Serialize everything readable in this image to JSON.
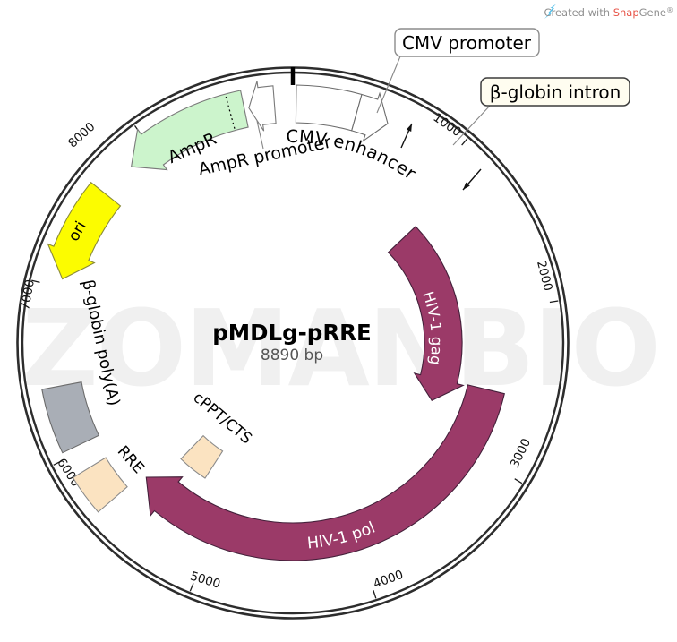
{
  "credit": {
    "prefix": "Created with ",
    "brand_part1": "Snap",
    "brand_part2": "Gene",
    "registered": "®",
    "brand_color": "#e85549",
    "text_color": "#8f8f8f",
    "icon_color": "#55bfe8"
  },
  "watermark": "ZOMANBIO",
  "plasmid": {
    "name": "pMDLg-pRRE",
    "size_label": "8890 bp"
  },
  "ticks": [
    "1000",
    "2000",
    "3000",
    "4000",
    "5000",
    "6000",
    "7000",
    "8000"
  ],
  "features": [
    {
      "id": "cmv-enhancer",
      "label": "CMV enhancer",
      "fill": "#ffffff",
      "text_fill": "#000000"
    },
    {
      "id": "cmv-promoter",
      "label": "CMV promoter",
      "fill": "#ffffff",
      "text_fill": "#000000",
      "label_style": "boxed-callout"
    },
    {
      "id": "beta-globin-intron",
      "label": "β-globin intron",
      "fill": "#fffdf0",
      "text_fill": "#000000",
      "label_style": "boxed-callout"
    },
    {
      "id": "hiv1-gag",
      "label": "HIV-1 gag",
      "fill": "#9b3a68",
      "text_fill": "#ffffff"
    },
    {
      "id": "hiv1-pol",
      "label": "HIV-1 pol",
      "fill": "#9b3a68",
      "text_fill": "#ffffff"
    },
    {
      "id": "cppt-cts",
      "label": "cPPT/CTS",
      "fill": "#fbe3c1",
      "text_fill": "#000000"
    },
    {
      "id": "rre",
      "label": "RRE",
      "fill": "#fbe3c1",
      "text_fill": "#000000"
    },
    {
      "id": "beta-globin-polya",
      "label": "β-globin poly(A)",
      "fill": "#a9aeb6",
      "text_fill": "#000000"
    },
    {
      "id": "ori",
      "label": "ori",
      "fill": "#fcfc00",
      "text_fill": "#000000"
    },
    {
      "id": "ampr",
      "label": "AmpR",
      "fill": "#ccf4cc",
      "text_fill": "#000000"
    },
    {
      "id": "ampr-promoter",
      "label": "AmpR promoter",
      "fill": "#ffffff",
      "text_fill": "#000000"
    }
  ]
}
